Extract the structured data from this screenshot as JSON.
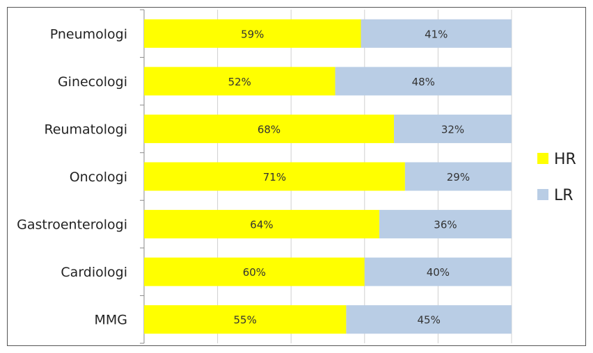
{
  "chart_data": {
    "type": "bar",
    "orientation": "horizontal",
    "stacked": true,
    "percent": true,
    "categories": [
      "Pneumologi",
      "Ginecologi",
      "Reumatologi",
      "Oncologi",
      "Gastroenterologi",
      "Cardiologi",
      "MMG"
    ],
    "series": [
      {
        "name": "HR",
        "color": "#ffff00",
        "values": [
          59,
          52,
          68,
          71,
          64,
          60,
          55
        ],
        "labels": [
          "59%",
          "52%",
          "68%",
          "71%",
          "64%",
          "60%",
          "55%"
        ]
      },
      {
        "name": "LR",
        "color": "#b9cde5",
        "values": [
          41,
          48,
          32,
          29,
          36,
          40,
          45
        ],
        "labels": [
          "41%",
          "48%",
          "32%",
          "29%",
          "36%",
          "40%",
          "45%"
        ]
      }
    ],
    "xlim": [
      0,
      100
    ],
    "x_gridlines": [
      0,
      20,
      40,
      60,
      80,
      100
    ],
    "grid": true,
    "legend_position": "right"
  }
}
